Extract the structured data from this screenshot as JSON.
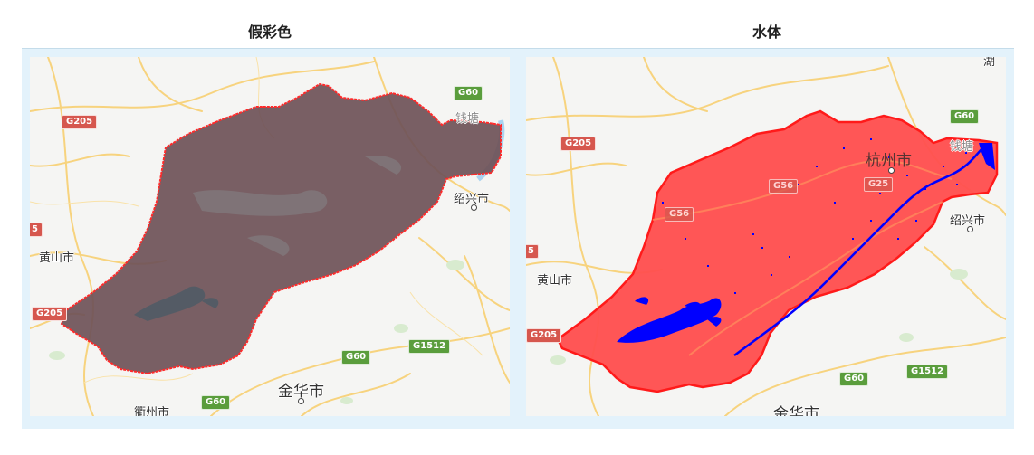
{
  "panels": {
    "left": {
      "title": "假彩色",
      "places": {
        "huangshan": "黄山市",
        "shaoxing": "绍兴市",
        "jinhua": "金华市",
        "quzhou": "衢州市",
        "qiantang": "钱塘"
      },
      "shields": {
        "g205a": "G205",
        "g205b": "G205",
        "g60a": "G60",
        "g60b": "G60",
        "g60c": "G60",
        "g1512": "G1512",
        "cut": "5"
      }
    },
    "right": {
      "title": "水体",
      "places": {
        "huangshan": "黄山市",
        "shaoxing": "绍兴市",
        "jinhua": "金华市",
        "hangzhou": "杭州市",
        "qiantang": "钱塘",
        "topcut": "湖"
      },
      "shields": {
        "g205a": "G205",
        "g205b": "G205",
        "g60a": "G60",
        "g60b": "G60",
        "g56a": "G56",
        "g56b": "G56",
        "g25": "G25",
        "g1512": "G1512",
        "cut": "5"
      }
    }
  },
  "colors": {
    "false_color_fill": "#6f5358",
    "water_mask_fill": "#ff4f4f",
    "water_color": "#0000ff",
    "boundary": "#ff2a2a",
    "frame": "#e3f2fb"
  },
  "icons": [
    "city-dot-icon",
    "highway-shield-icon"
  ]
}
